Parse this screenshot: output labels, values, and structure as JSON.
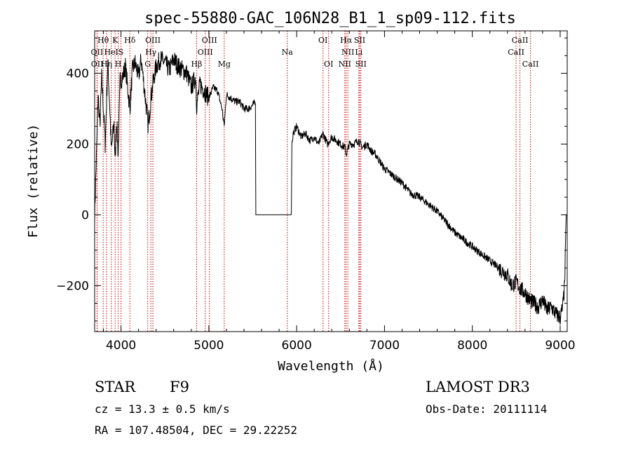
{
  "chart_data": {
    "type": "line",
    "title": "spec-55880-GAC_106N28_B1_1_sp09-112.fits",
    "xlabel": "Wavelength (Å)",
    "ylabel": "Flux (relative)",
    "xlim": [
      3700,
      9080
    ],
    "ylim": [
      -330,
      520
    ],
    "xticks": [
      4000,
      5000,
      6000,
      7000,
      8000,
      9000
    ],
    "xtick_labels": [
      "4000",
      "5000",
      "6000",
      "7000",
      "8000",
      "9000"
    ],
    "yticks": [
      -200,
      0,
      200,
      400
    ],
    "ytick_labels": [
      "−200",
      "0",
      "200",
      "400"
    ],
    "series": [
      {
        "name": "flux",
        "x": [
          3700,
          3720,
          3740,
          3760,
          3780,
          3800,
          3820,
          3850,
          3870,
          3890,
          3920,
          3933,
          3950,
          3968,
          3990,
          4020,
          4050,
          4080,
          4101,
          4130,
          4160,
          4200,
          4230,
          4260,
          4290,
          4310,
          4340,
          4370,
          4400,
          4450,
          4500,
          4550,
          4600,
          4650,
          4700,
          4750,
          4800,
          4850,
          4861,
          4900,
          4950,
          5000,
          5050,
          5100,
          5150,
          5175,
          5200,
          5250,
          5300,
          5350,
          5400,
          5450,
          5500,
          5530,
          5535,
          5550,
          5600,
          5700,
          5800,
          5900,
          5940,
          5945,
          5960,
          6000,
          6050,
          6100,
          6150,
          6200,
          6250,
          6300,
          6350,
          6400,
          6450,
          6500,
          6550,
          6563,
          6600,
          6650,
          6700,
          6750,
          6800,
          6850,
          6900,
          6950,
          7000,
          7100,
          7200,
          7300,
          7400,
          7500,
          7600,
          7700,
          7800,
          7900,
          8000,
          8100,
          8200,
          8300,
          8400,
          8450,
          8500,
          8550,
          8600,
          8650,
          8700,
          8750,
          8800,
          8850,
          8900,
          8950,
          9000,
          9030,
          9050,
          9060,
          9070,
          9080
        ],
        "y": [
          0,
          160,
          340,
          250,
          390,
          300,
          200,
          430,
          320,
          180,
          260,
          150,
          270,
          170,
          380,
          390,
          420,
          350,
          300,
          410,
          430,
          390,
          440,
          370,
          300,
          250,
          330,
          380,
          420,
          440,
          430,
          410,
          440,
          420,
          410,
          400,
          360,
          390,
          310,
          370,
          350,
          330,
          360,
          350,
          300,
          250,
          340,
          330,
          320,
          320,
          300,
          300,
          310,
          320,
          0,
          0,
          0,
          0,
          0,
          0,
          0,
          200,
          230,
          250,
          220,
          230,
          210,
          220,
          200,
          230,
          200,
          220,
          210,
          200,
          190,
          170,
          200,
          200,
          210,
          190,
          200,
          180,
          170,
          150,
          130,
          110,
          90,
          60,
          50,
          30,
          10,
          -20,
          -50,
          -70,
          -90,
          -110,
          -130,
          -150,
          -170,
          -200,
          -190,
          -210,
          -220,
          -240,
          -250,
          -260,
          -240,
          -270,
          -260,
          -280,
          -290,
          -260,
          -200,
          -100,
          0,
          0
        ]
      }
    ],
    "spectral_lines": [
      {
        "label": "Hθ",
        "wavelength": 3797,
        "row": 1
      },
      {
        "label": "K",
        "wavelength": 3933,
        "row": 1
      },
      {
        "label": "Hδ",
        "wavelength": 4101,
        "row": 1
      },
      {
        "label": "OIII",
        "wavelength": 4363,
        "row": 1
      },
      {
        "label": "OIII",
        "wavelength": 5007,
        "row": 1
      },
      {
        "label": "OI",
        "wavelength": 6300,
        "row": 1
      },
      {
        "label": "Hα",
        "wavelength": 6563,
        "row": 1
      },
      {
        "label": "SII",
        "wavelength": 6717,
        "row": 1
      },
      {
        "label": "CaII",
        "wavelength": 8542,
        "row": 1
      },
      {
        "label": "OII",
        "wavelength": 3727,
        "row": 2
      },
      {
        "label": "HeI",
        "wavelength": 3889,
        "row": 2
      },
      {
        "label": "S",
        "wavelength": 4000,
        "row": 2
      },
      {
        "label": "Hγ",
        "wavelength": 4340,
        "row": 2
      },
      {
        "label": "OIII",
        "wavelength": 4959,
        "row": 2
      },
      {
        "label": "Na",
        "wavelength": 5893,
        "row": 2
      },
      {
        "label": "NII",
        "wavelength": 6583,
        "row": 2
      },
      {
        "label": "Li",
        "wavelength": 6708,
        "row": 2
      },
      {
        "label": "CaII",
        "wavelength": 8498,
        "row": 2
      },
      {
        "label": "OII",
        "wavelength": 3729,
        "row": 3
      },
      {
        "label": "Hη",
        "wavelength": 3835,
        "row": 3
      },
      {
        "label": "H",
        "wavelength": 3968,
        "row": 3
      },
      {
        "label": "G",
        "wavelength": 4304,
        "row": 3
      },
      {
        "label": "Hβ",
        "wavelength": 4861,
        "row": 3
      },
      {
        "label": "Mg",
        "wavelength": 5175,
        "row": 3
      },
      {
        "label": "OI",
        "wavelength": 6364,
        "row": 3
      },
      {
        "label": "NII",
        "wavelength": 6548,
        "row": 3
      },
      {
        "label": "SII",
        "wavelength": 6731,
        "row": 3
      },
      {
        "label": "CaII",
        "wavelength": 8662,
        "row": 3
      }
    ]
  },
  "info": {
    "object_class": "STAR",
    "subclass": "F9",
    "survey": "LAMOST DR3",
    "redshift_text": "cz = 13.3 ± 0.5 km/s",
    "obs_date_text": "Obs-Date: 20111114",
    "coords_text": "RA = 107.48504, DEC =  29.22252"
  },
  "colors": {
    "line_marker": "#cc0000",
    "spectrum": "#000000",
    "axes": "#000000"
  }
}
